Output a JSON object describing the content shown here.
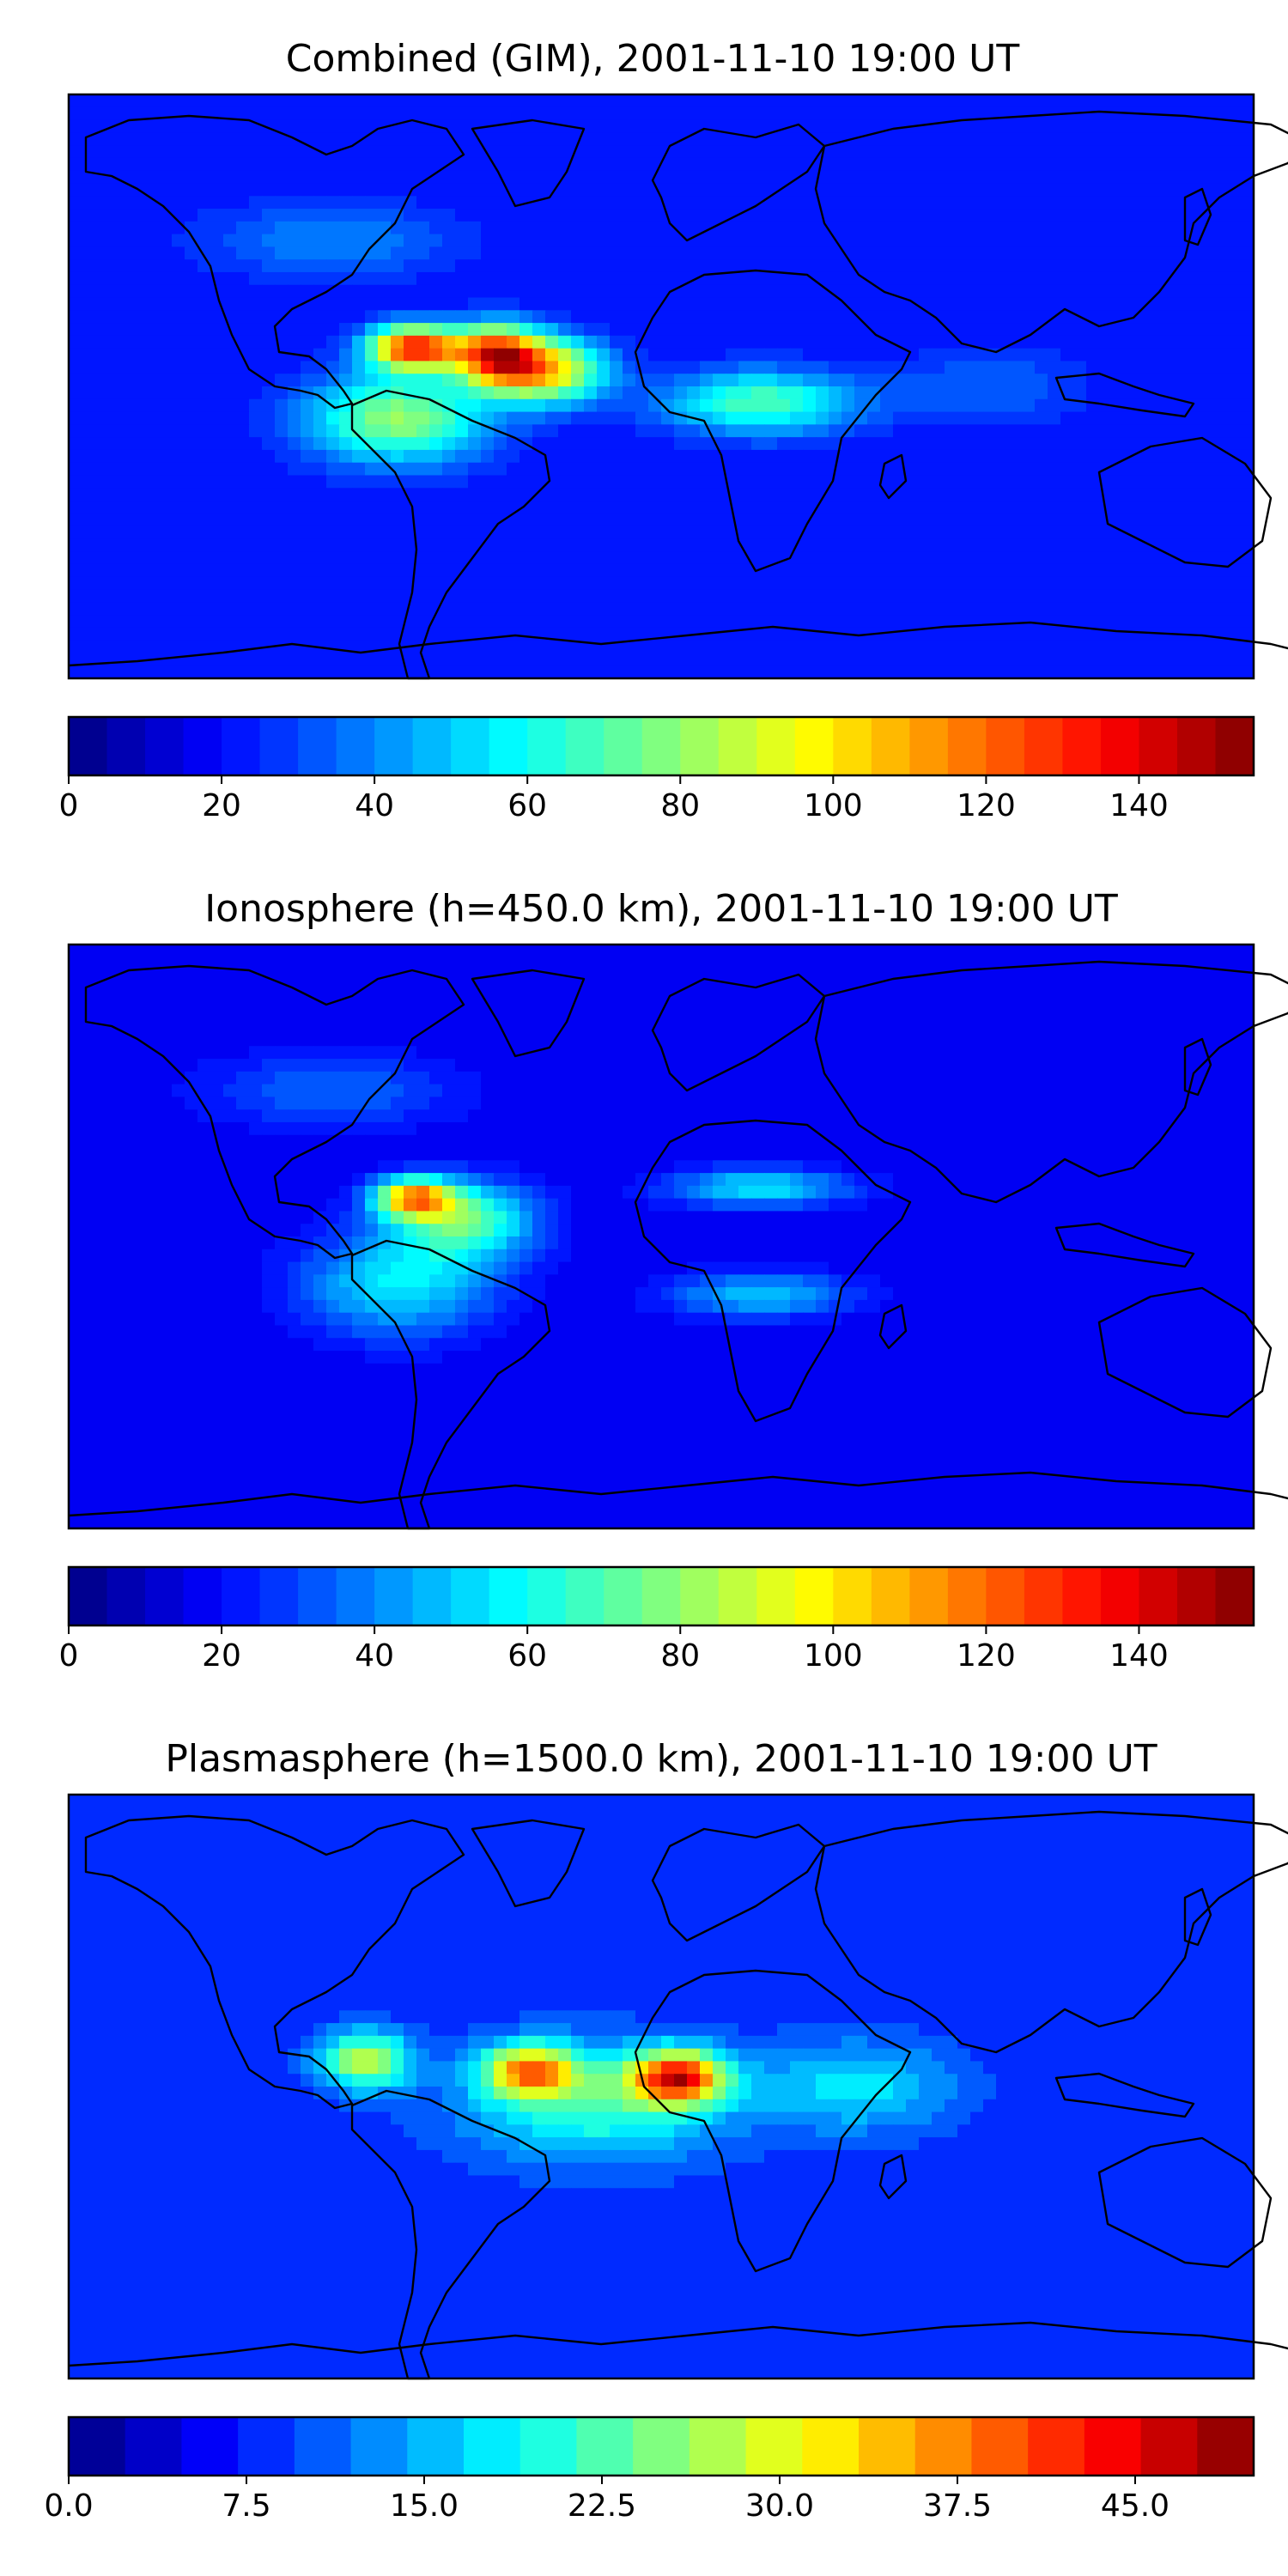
{
  "chart_data": [
    {
      "type": "heatmap",
      "title": "Combined (GIM), 2001-11-10 19:00 UT",
      "colormap": "jet",
      "colorbar": {
        "range": [
          0,
          155
        ],
        "levels": 31,
        "tick_labels": [
          "0",
          "20",
          "40",
          "60",
          "80",
          "100",
          "120",
          "140"
        ],
        "tick_values": [
          0,
          20,
          40,
          60,
          80,
          100,
          120,
          140
        ]
      },
      "background_value": 20,
      "blobs": [
        {
          "lon": -75,
          "lat": 12,
          "value": 130,
          "spread_lon": 14,
          "spread_lat": 7
        },
        {
          "lon": -50,
          "lat": 10,
          "value": 115,
          "spread_lon": 13,
          "spread_lat": 9
        },
        {
          "lon": -35,
          "lat": 5,
          "value": 100,
          "spread_lon": 18,
          "spread_lat": 10
        },
        {
          "lon": -80,
          "lat": -10,
          "value": 80,
          "spread_lon": 28,
          "spread_lat": 14
        },
        {
          "lon": 30,
          "lat": -5,
          "value": 70,
          "spread_lon": 30,
          "spread_lat": 10
        },
        {
          "lon": -100,
          "lat": 45,
          "value": 40,
          "spread_lon": 40,
          "spread_lat": 12
        },
        {
          "lon": 100,
          "lat": 0,
          "value": 35,
          "spread_lon": 30,
          "spread_lat": 12
        }
      ]
    },
    {
      "type": "heatmap",
      "title": "Ionosphere  (h=450.0 km), 2001-11-10 19:00 UT",
      "colormap": "jet",
      "colorbar": {
        "range": [
          0,
          155
        ],
        "levels": 31,
        "tick_labels": [
          "0",
          "20",
          "40",
          "60",
          "80",
          "100",
          "120",
          "140"
        ],
        "tick_values": [
          0,
          20,
          40,
          60,
          80,
          100,
          120,
          140
        ]
      },
      "background_value": 15,
      "blobs": [
        {
          "lon": -75,
          "lat": 12,
          "value": 100,
          "spread_lon": 12,
          "spread_lat": 6
        },
        {
          "lon": -60,
          "lat": 5,
          "value": 70,
          "spread_lon": 22,
          "spread_lat": 12
        },
        {
          "lon": -80,
          "lat": -15,
          "value": 55,
          "spread_lon": 30,
          "spread_lat": 16
        },
        {
          "lon": 30,
          "lat": 15,
          "value": 55,
          "spread_lon": 28,
          "spread_lat": 6
        },
        {
          "lon": 30,
          "lat": -18,
          "value": 50,
          "spread_lon": 28,
          "spread_lat": 7
        },
        {
          "lon": -100,
          "lat": 45,
          "value": 35,
          "spread_lon": 40,
          "spread_lat": 12
        }
      ]
    },
    {
      "type": "heatmap",
      "title": "Plasmasphere (h=1500.0 km), 2001-11-10 19:00 UT",
      "colormap": "jet",
      "colorbar": {
        "range": [
          0,
          50
        ],
        "levels": 21,
        "tick_labels": [
          "0.0",
          "7.5",
          "15.0",
          "22.5",
          "30.0",
          "37.5",
          "45.0"
        ],
        "tick_values": [
          0,
          7.5,
          15,
          22.5,
          30,
          37.5,
          45
        ]
      },
      "background_value": 8,
      "blobs": [
        {
          "lon": 5,
          "lat": 3,
          "value": 40,
          "spread_lon": 14,
          "spread_lat": 8
        },
        {
          "lon": -40,
          "lat": 5,
          "value": 33,
          "spread_lon": 14,
          "spread_lat": 8
        },
        {
          "lon": -90,
          "lat": 8,
          "value": 28,
          "spread_lon": 14,
          "spread_lat": 9
        },
        {
          "lon": -20,
          "lat": -5,
          "value": 22,
          "spread_lon": 40,
          "spread_lat": 18
        },
        {
          "lon": 60,
          "lat": 0,
          "value": 18,
          "spread_lon": 30,
          "spread_lat": 14
        }
      ]
    }
  ]
}
